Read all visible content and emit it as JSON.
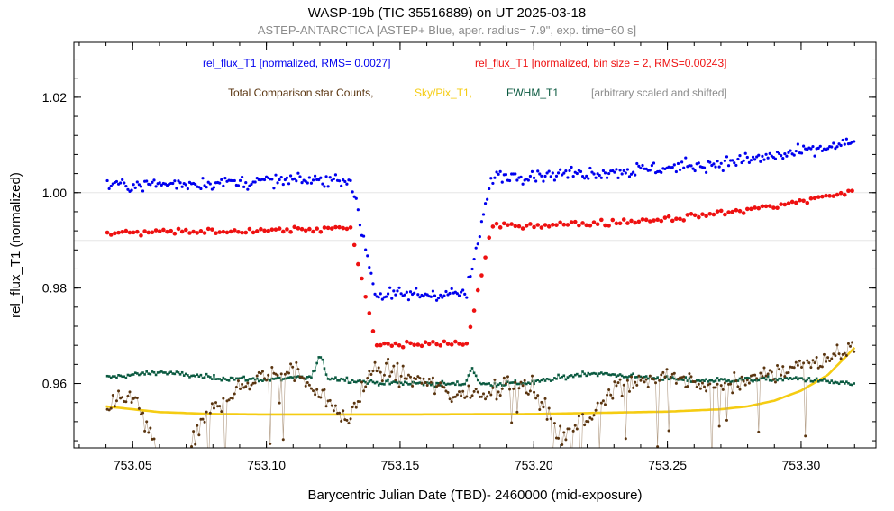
{
  "colors": {
    "blue": "#0000ee",
    "red": "#ee1111",
    "brown": "#5a3510",
    "brown_line": "#b09a82",
    "yellow": "#f5cc12",
    "green": "#0b5a40",
    "green_line": "#3c8a6e",
    "gray": "#8c8c8c",
    "grid": "#e6e6e6"
  },
  "chart_data": {
    "type": "scatter",
    "title": "WASP-19b (TIC 35516889)  on UT 2025-03-18",
    "subtitle": "ASTEP-ANTARCTICA [ASTEP+ Blue, aper. radius= 7.9\", exp. time=60 s]",
    "xlabel": "Barycentric Julian Date (TBD)- 2460000 (mid-exposure)",
    "ylabel": "rel_flux_T1 (normalized)",
    "xlim": [
      753.028,
      753.328
    ],
    "ylim": [
      0.9465,
      1.0315
    ],
    "xticks": [
      "753.05",
      "753.10",
      "753.15",
      "753.20",
      "753.25",
      "753.30"
    ],
    "yticks": [
      "0.96",
      "0.98",
      "1.00",
      "1.02"
    ],
    "legend": {
      "row1": [
        "rel_flux_T1 [normalized, RMS= 0.0027]",
        "rel_flux_T1 [normalized, bin size = 2, RMS=0.00243]"
      ],
      "row2": [
        "Total Comparison star Counts,",
        "Sky/Pix_T1,",
        "FWHM_T1",
        "[arbitrary scaled and shifted]"
      ]
    },
    "series": [
      {
        "name": "rel_flux_T1 [normalized, RMS= 0.0027]",
        "color": "blue",
        "marker": "dot",
        "x_start": 753.0405,
        "x_step": 0.0007,
        "count": 400,
        "model": {
          "baseline_start": 1.0015,
          "baseline_end": 1.0055,
          "baseline_curve": 0.005,
          "depth": 0.0245,
          "t0": 753.158,
          "half_width": 0.0265,
          "ingress": 0.0095,
          "scatter": 0.0014
        }
      },
      {
        "name": "rel_flux_T1 [normalized, bin size = 2, RMS=0.00243]",
        "color": "red",
        "marker": "dot",
        "x_start": 753.0405,
        "x_step": 0.0014,
        "count": 200,
        "model": {
          "baseline_start": 0.9915,
          "baseline_end": 0.9945,
          "baseline_curve": 0.006,
          "depth": 0.0245,
          "t0": 753.158,
          "half_width": 0.0265,
          "ingress": 0.0095,
          "scatter": 0.0006
        }
      },
      {
        "name": "Total Comparison star Counts",
        "color": "brown",
        "marker": "dot-line",
        "points": [
          [
            753.04,
            0.954
          ],
          [
            753.05,
            0.958
          ],
          [
            753.06,
            0.944
          ],
          [
            753.07,
            0.945
          ],
          [
            753.08,
            0.955
          ],
          [
            753.09,
            0.959
          ],
          [
            753.1,
            0.962
          ],
          [
            753.11,
            0.963
          ],
          [
            753.12,
            0.958
          ],
          [
            753.13,
            0.952
          ],
          [
            753.14,
            0.963
          ],
          [
            753.15,
            0.962
          ],
          [
            753.16,
            0.96
          ],
          [
            753.17,
            0.958
          ],
          [
            753.18,
            0.958
          ],
          [
            753.19,
            0.96
          ],
          [
            753.2,
            0.959
          ],
          [
            753.21,
            0.949
          ],
          [
            753.22,
            0.952
          ],
          [
            753.23,
            0.96
          ],
          [
            753.24,
            0.961
          ],
          [
            753.25,
            0.961
          ],
          [
            753.26,
            0.96
          ],
          [
            753.27,
            0.959
          ],
          [
            753.28,
            0.961
          ],
          [
            753.29,
            0.962
          ],
          [
            753.3,
            0.964
          ],
          [
            753.31,
            0.965
          ],
          [
            753.32,
            0.968
          ]
        ],
        "scatter": 0.0013
      },
      {
        "name": "Sky/Pix_T1",
        "color": "yellow",
        "marker": "line",
        "points": [
          [
            753.04,
            0.9552
          ],
          [
            753.06,
            0.954
          ],
          [
            753.08,
            0.9536
          ],
          [
            753.1,
            0.9535
          ],
          [
            753.15,
            0.9535
          ],
          [
            753.2,
            0.9536
          ],
          [
            753.25,
            0.9541
          ],
          [
            753.27,
            0.9546
          ],
          [
            753.28,
            0.9552
          ],
          [
            753.29,
            0.9564
          ],
          [
            753.3,
            0.9585
          ],
          [
            753.31,
            0.9618
          ],
          [
            753.32,
            0.9675
          ]
        ]
      },
      {
        "name": "FWHM_T1",
        "color": "green",
        "marker": "dot-line",
        "points": [
          [
            753.04,
            0.9612
          ],
          [
            753.06,
            0.9624
          ],
          [
            753.08,
            0.9612
          ],
          [
            753.1,
            0.9608
          ],
          [
            753.12,
            0.9614
          ],
          [
            753.14,
            0.9602
          ],
          [
            753.16,
            0.96
          ],
          [
            753.18,
            0.9598
          ],
          [
            753.2,
            0.9602
          ],
          [
            753.22,
            0.9622
          ],
          [
            753.24,
            0.9614
          ],
          [
            753.26,
            0.9606
          ],
          [
            753.28,
            0.9608
          ],
          [
            753.3,
            0.961
          ],
          [
            753.32,
            0.9598
          ]
        ],
        "scatter": 0.0005
      }
    ]
  }
}
